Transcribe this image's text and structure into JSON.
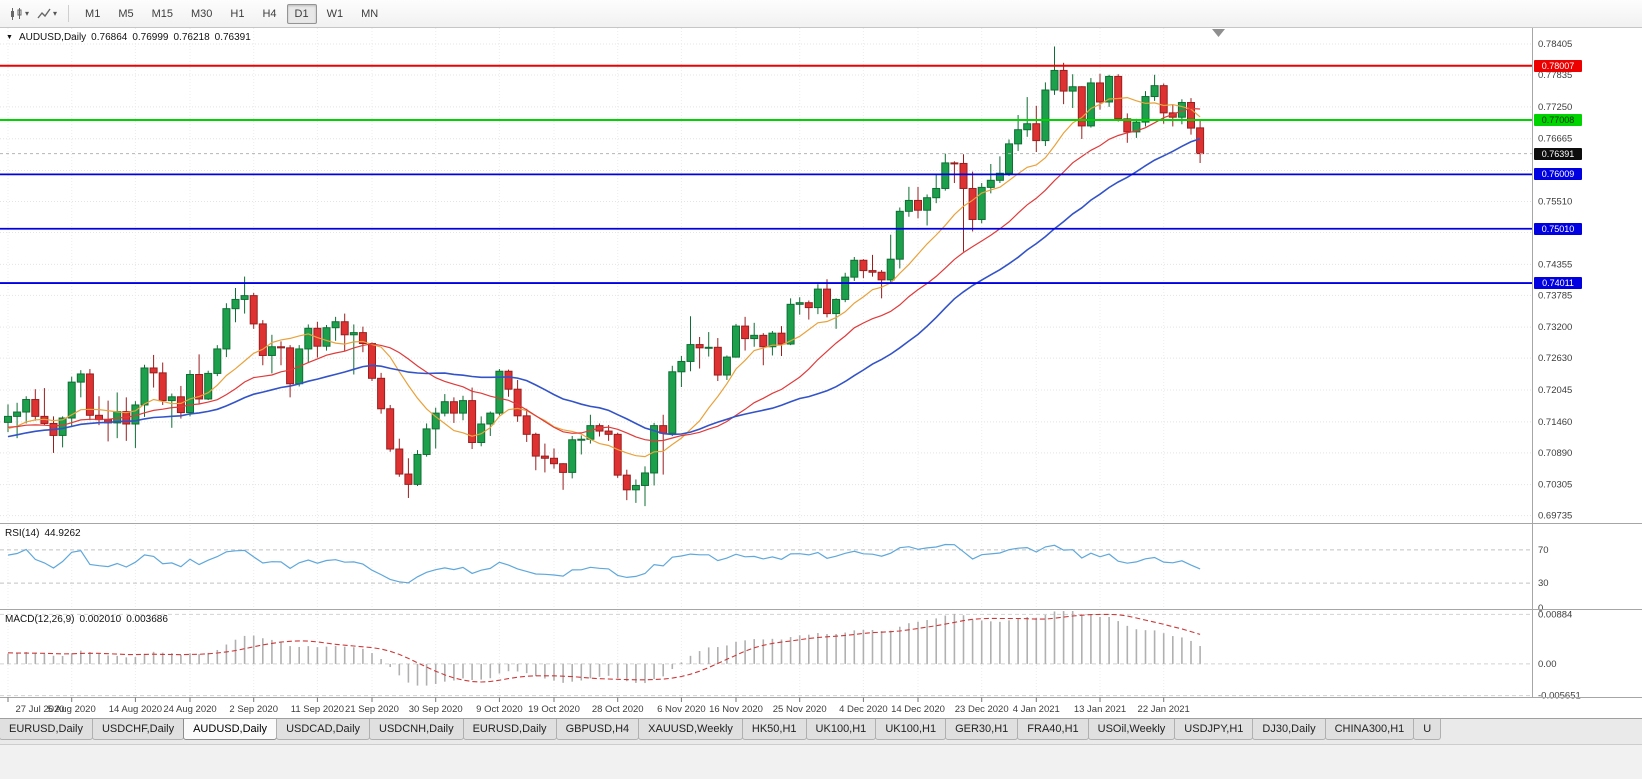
{
  "icons": {
    "dropdown": "▾",
    "title_marker": "▼"
  },
  "toolbar": {
    "timeframes": [
      "M1",
      "M5",
      "M15",
      "M30",
      "H1",
      "H4",
      "D1",
      "W1",
      "MN"
    ],
    "active_timeframe": "D1"
  },
  "chart": {
    "title": "AUDUSD,Daily",
    "open": "0.76864",
    "high": "0.76999",
    "low": "0.76218",
    "close": "0.76391"
  },
  "price_axis": {
    "labels": [
      "0.78405",
      "0.77835",
      "0.77250",
      "0.76665",
      "0.75510",
      "0.74355",
      "0.73785",
      "0.73200",
      "0.72630",
      "0.72045",
      "0.71460",
      "0.70890",
      "0.70305",
      "0.69735"
    ],
    "grid_prices": [
      0.78405,
      0.77835,
      0.7725,
      0.76665,
      0.7608,
      0.7551,
      0.7494,
      0.74355,
      0.73785,
      0.732,
      0.7263,
      0.72045,
      0.7146,
      0.7089,
      0.70305,
      0.69735
    ]
  },
  "price_lines": [
    {
      "label": "0.78007",
      "price": 0.78007,
      "color": "#EC0000",
      "text_color": "#ffffff",
      "width": 2
    },
    {
      "label": "0.77008",
      "price": 0.77008,
      "color": "#00D400",
      "text_color": "#003300",
      "width": 2
    },
    {
      "label": "0.76009",
      "price": 0.76009,
      "color": "#0000E0",
      "text_color": "#ffffff",
      "width": 1.8
    },
    {
      "label": "0.75010",
      "price": 0.7501,
      "color": "#0000E0",
      "text_color": "#ffffff",
      "width": 1.8
    },
    {
      "label": "0.74011",
      "price": 0.74011,
      "color": "#0000E0",
      "text_color": "#ffffff",
      "width": 1.8
    }
  ],
  "bid": {
    "label": "0.76391",
    "price": 0.76391,
    "bg": "#0d0d0d"
  },
  "indicators": {
    "rsi": {
      "name": "RSI(14)",
      "value": "44.9262",
      "levels": [
        70,
        30
      ],
      "axis_labels": [
        "70",
        "30",
        "0"
      ],
      "line_color": "#5FA8DC"
    },
    "macd": {
      "name": "MACD(12,26,9)",
      "main_value": "0.002010",
      "signal_value": "0.003686",
      "axis_labels": [
        "0.00884",
        "0.00",
        "-0.005651"
      ],
      "histogram_color": "#B0B0B0",
      "signal_color": "#CC3A3A"
    }
  },
  "x_axis": {
    "labels": [
      {
        "text": "27 Jul 2020",
        "index": 0
      },
      {
        "text": "5 Aug 2020",
        "index": 7
      },
      {
        "text": "14 Aug 2020",
        "index": 14
      },
      {
        "text": "24 Aug 2020",
        "index": 20
      },
      {
        "text": "2 Sep 2020",
        "index": 27
      },
      {
        "text": "11 Sep 2020",
        "index": 34
      },
      {
        "text": "21 Sep 2020",
        "index": 40
      },
      {
        "text": "30 Sep 2020",
        "index": 47
      },
      {
        "text": "9 Oct 2020",
        "index": 54
      },
      {
        "text": "19 Oct 2020",
        "index": 60
      },
      {
        "text": "28 Oct 2020",
        "index": 67
      },
      {
        "text": "6 Nov 2020",
        "index": 74
      },
      {
        "text": "16 Nov 2020",
        "index": 80
      },
      {
        "text": "25 Nov 2020",
        "index": 87
      },
      {
        "text": "4 Dec 2020",
        "index": 94
      },
      {
        "text": "14 Dec 2020",
        "index": 100
      },
      {
        "text": "23 Dec 2020",
        "index": 107
      },
      {
        "text": "4 Jan 2021",
        "index": 113
      },
      {
        "text": "13 Jan 2021",
        "index": 120
      },
      {
        "text": "22 Jan 2021",
        "index": 127
      }
    ]
  },
  "tabs": {
    "items": [
      "EURUSD,Daily",
      "USDCHF,Daily",
      "AUDUSD,Daily",
      "USDCAD,Daily",
      "USDCNH,Daily",
      "EURUSD,Daily",
      "GBPUSD,H4",
      "XAUUSD,Weekly",
      "HK50,H1",
      "UK100,H1",
      "UK100,H1",
      "GER30,H1",
      "FRA40,H1",
      "USOil,Weekly",
      "USDJPY,H1",
      "DJ30,Daily",
      "CHINA300,H1",
      "U"
    ],
    "active_index": 2
  },
  "chart_data": {
    "type": "candlestick",
    "symbol": "AUDUSD",
    "timeframe": "Daily",
    "ylim": [
      0.696,
      0.787
    ],
    "colors": {
      "bull": "#1CA04C",
      "bull_border": "#0F6E33",
      "bear": "#DE3232",
      "bear_border": "#9A1E1E"
    },
    "moving_averages": [
      {
        "period": 10,
        "color": "#E9A23B",
        "width": 1.2
      },
      {
        "period": 21,
        "color": "#E03A3A",
        "width": 1.2
      },
      {
        "period": 34,
        "color": "#3353C8",
        "width": 1.6
      }
    ],
    "prehistory_closes": [
      0.685,
      0.686,
      0.6855,
      0.6872,
      0.689,
      0.6885,
      0.6901,
      0.6915,
      0.6908,
      0.6922,
      0.6938,
      0.693,
      0.6945,
      0.696,
      0.6952,
      0.6968,
      0.698,
      0.6975,
      0.699,
      0.7005,
      0.6998,
      0.7012,
      0.7025,
      0.7018,
      0.7032,
      0.7045,
      0.7038,
      0.7052,
      0.7065,
      0.7058,
      0.7072,
      0.7085,
      0.7078,
      0.7092,
      0.7105,
      0.7098,
      0.711,
      0.7122,
      0.7115,
      0.7128,
      0.714,
      0.7132,
      0.7145,
      0.7155,
      0.7148,
      0.713,
      0.7118,
      0.7125,
      0.7138,
      0.715,
      0.7142,
      0.712,
      0.7108,
      0.7118,
      0.7132,
      0.7145,
      0.7138,
      0.7128,
      0.714,
      0.715
    ],
    "candles": [
      [
        0.7145,
        0.7178,
        0.7127,
        0.7156
      ],
      [
        0.7156,
        0.7181,
        0.7116,
        0.7164
      ],
      [
        0.7164,
        0.7193,
        0.7143,
        0.7187
      ],
      [
        0.7187,
        0.7206,
        0.7148,
        0.7156
      ],
      [
        0.7156,
        0.7208,
        0.714,
        0.7143
      ],
      [
        0.7143,
        0.7156,
        0.7089,
        0.7121
      ],
      [
        0.7121,
        0.7156,
        0.7099,
        0.7153
      ],
      [
        0.7153,
        0.7229,
        0.7137,
        0.7219
      ],
      [
        0.7219,
        0.7241,
        0.7191,
        0.7234
      ],
      [
        0.7234,
        0.7243,
        0.7149,
        0.7158
      ],
      [
        0.7158,
        0.7193,
        0.714,
        0.715
      ],
      [
        0.715,
        0.7185,
        0.711,
        0.7144
      ],
      [
        0.7144,
        0.72,
        0.7116,
        0.7165
      ],
      [
        0.7165,
        0.7191,
        0.7111,
        0.7142
      ],
      [
        0.7142,
        0.7184,
        0.7098,
        0.7177
      ],
      [
        0.7177,
        0.7251,
        0.7155,
        0.7245
      ],
      [
        0.7245,
        0.7269,
        0.7209,
        0.7236
      ],
      [
        0.7236,
        0.7255,
        0.7177,
        0.7185
      ],
      [
        0.7185,
        0.7198,
        0.7135,
        0.7192
      ],
      [
        0.7192,
        0.7212,
        0.7152,
        0.7163
      ],
      [
        0.7163,
        0.7241,
        0.7156,
        0.7233
      ],
      [
        0.7233,
        0.727,
        0.7179,
        0.7188
      ],
      [
        0.7188,
        0.724,
        0.7186,
        0.7235
      ],
      [
        0.7235,
        0.7287,
        0.723,
        0.728
      ],
      [
        0.728,
        0.7364,
        0.7265,
        0.7354
      ],
      [
        0.7354,
        0.7392,
        0.7329,
        0.7371
      ],
      [
        0.7371,
        0.7413,
        0.7345,
        0.7378
      ],
      [
        0.7378,
        0.7383,
        0.7317,
        0.7326
      ],
      [
        0.7326,
        0.7333,
        0.725,
        0.7268
      ],
      [
        0.7268,
        0.7306,
        0.7235,
        0.7284
      ],
      [
        0.7284,
        0.7294,
        0.725,
        0.7282
      ],
      [
        0.7282,
        0.7287,
        0.7191,
        0.7216
      ],
      [
        0.7216,
        0.7287,
        0.7211,
        0.728
      ],
      [
        0.728,
        0.7325,
        0.7255,
        0.7318
      ],
      [
        0.7318,
        0.733,
        0.7264,
        0.7285
      ],
      [
        0.7285,
        0.7324,
        0.7277,
        0.7319
      ],
      [
        0.7319,
        0.7339,
        0.7295,
        0.733
      ],
      [
        0.733,
        0.7345,
        0.7276,
        0.7306
      ],
      [
        0.7306,
        0.7325,
        0.7233,
        0.731
      ],
      [
        0.731,
        0.7321,
        0.7274,
        0.729
      ],
      [
        0.729,
        0.7292,
        0.7221,
        0.7226
      ],
      [
        0.7226,
        0.7236,
        0.7161,
        0.717
      ],
      [
        0.717,
        0.7177,
        0.7091,
        0.7096
      ],
      [
        0.7096,
        0.7115,
        0.7045,
        0.705
      ],
      [
        0.705,
        0.7079,
        0.7006,
        0.7031
      ],
      [
        0.7031,
        0.7094,
        0.7028,
        0.7086
      ],
      [
        0.7086,
        0.7143,
        0.7082,
        0.7133
      ],
      [
        0.7133,
        0.7172,
        0.7097,
        0.7162
      ],
      [
        0.7162,
        0.7197,
        0.7156,
        0.7183
      ],
      [
        0.7183,
        0.7191,
        0.7144,
        0.7162
      ],
      [
        0.7162,
        0.7194,
        0.7149,
        0.7185
      ],
      [
        0.7185,
        0.7209,
        0.7096,
        0.7108
      ],
      [
        0.7108,
        0.7156,
        0.7101,
        0.7142
      ],
      [
        0.7142,
        0.7165,
        0.712,
        0.7162
      ],
      [
        0.7162,
        0.7243,
        0.7158,
        0.7239
      ],
      [
        0.7239,
        0.7242,
        0.7192,
        0.7206
      ],
      [
        0.7206,
        0.7223,
        0.7146,
        0.7157
      ],
      [
        0.7157,
        0.717,
        0.7109,
        0.7123
      ],
      [
        0.7123,
        0.7126,
        0.7057,
        0.7083
      ],
      [
        0.7083,
        0.7106,
        0.7053,
        0.7079
      ],
      [
        0.7079,
        0.7097,
        0.706,
        0.7069
      ],
      [
        0.7069,
        0.707,
        0.7021,
        0.7053
      ],
      [
        0.7053,
        0.712,
        0.7042,
        0.7113
      ],
      [
        0.7113,
        0.7121,
        0.7086,
        0.7114
      ],
      [
        0.7114,
        0.7159,
        0.7106,
        0.7139
      ],
      [
        0.7139,
        0.7143,
        0.7119,
        0.7129
      ],
      [
        0.7129,
        0.714,
        0.7111,
        0.7123
      ],
      [
        0.7123,
        0.7126,
        0.7043,
        0.7048
      ],
      [
        0.7048,
        0.7058,
        0.7002,
        0.7021
      ],
      [
        0.7021,
        0.704,
        0.6997,
        0.7029
      ],
      [
        0.7029,
        0.7064,
        0.6991,
        0.7052
      ],
      [
        0.7052,
        0.7144,
        0.7029,
        0.7139
      ],
      [
        0.7139,
        0.7159,
        0.7049,
        0.7125
      ],
      [
        0.7125,
        0.7249,
        0.712,
        0.7238
      ],
      [
        0.7238,
        0.7267,
        0.721,
        0.7257
      ],
      [
        0.7257,
        0.734,
        0.7239,
        0.7288
      ],
      [
        0.7288,
        0.7302,
        0.7244,
        0.7282
      ],
      [
        0.7282,
        0.7311,
        0.7266,
        0.7283
      ],
      [
        0.7283,
        0.73,
        0.7221,
        0.7232
      ],
      [
        0.7232,
        0.7268,
        0.7223,
        0.7265
      ],
      [
        0.7265,
        0.7326,
        0.7264,
        0.7322
      ],
      [
        0.7322,
        0.7339,
        0.7277,
        0.7299
      ],
      [
        0.7299,
        0.7328,
        0.7284,
        0.7305
      ],
      [
        0.7305,
        0.7309,
        0.725,
        0.7284
      ],
      [
        0.7284,
        0.7313,
        0.7268,
        0.7309
      ],
      [
        0.7309,
        0.7322,
        0.7267,
        0.7289
      ],
      [
        0.7289,
        0.7373,
        0.7287,
        0.7362
      ],
      [
        0.7362,
        0.7375,
        0.7343,
        0.7365
      ],
      [
        0.7365,
        0.7369,
        0.7334,
        0.7356
      ],
      [
        0.7356,
        0.7399,
        0.7344,
        0.739
      ],
      [
        0.739,
        0.7408,
        0.7338,
        0.7345
      ],
      [
        0.7345,
        0.7373,
        0.7317,
        0.7371
      ],
      [
        0.7371,
        0.742,
        0.7366,
        0.7412
      ],
      [
        0.7412,
        0.7449,
        0.7405,
        0.7443
      ],
      [
        0.7443,
        0.7445,
        0.741,
        0.7424
      ],
      [
        0.7424,
        0.7453,
        0.7413,
        0.7421
      ],
      [
        0.7421,
        0.7425,
        0.7373,
        0.7407
      ],
      [
        0.7407,
        0.749,
        0.74,
        0.7445
      ],
      [
        0.7445,
        0.754,
        0.7428,
        0.7533
      ],
      [
        0.7533,
        0.7578,
        0.7523,
        0.7553
      ],
      [
        0.7553,
        0.7578,
        0.752,
        0.7535
      ],
      [
        0.7535,
        0.7564,
        0.7507,
        0.7558
      ],
      [
        0.7558,
        0.76,
        0.7548,
        0.7575
      ],
      [
        0.7575,
        0.7639,
        0.7571,
        0.7622
      ],
      [
        0.7622,
        0.7625,
        0.7585,
        0.7621
      ],
      [
        0.7621,
        0.7638,
        0.7459,
        0.7575
      ],
      [
        0.7575,
        0.7606,
        0.7496,
        0.7518
      ],
      [
        0.7518,
        0.7585,
        0.7511,
        0.7577
      ],
      [
        0.7577,
        0.762,
        0.7566,
        0.759
      ],
      [
        0.759,
        0.7634,
        0.7585,
        0.7603
      ],
      [
        0.7603,
        0.7665,
        0.7598,
        0.7657
      ],
      [
        0.7657,
        0.771,
        0.7644,
        0.7683
      ],
      [
        0.7683,
        0.7743,
        0.767,
        0.7694
      ],
      [
        0.7694,
        0.7727,
        0.7642,
        0.7663
      ],
      [
        0.7663,
        0.777,
        0.7653,
        0.7756
      ],
      [
        0.7756,
        0.7836,
        0.7747,
        0.7792
      ],
      [
        0.7792,
        0.7806,
        0.773,
        0.7754
      ],
      [
        0.7754,
        0.7785,
        0.7723,
        0.7762
      ],
      [
        0.7762,
        0.7763,
        0.7666,
        0.769
      ],
      [
        0.769,
        0.7778,
        0.7687,
        0.7769
      ],
      [
        0.7769,
        0.7786,
        0.772,
        0.7734
      ],
      [
        0.7734,
        0.7784,
        0.7725,
        0.7781
      ],
      [
        0.7781,
        0.7785,
        0.7698,
        0.7703
      ],
      [
        0.7703,
        0.7713,
        0.7659,
        0.7679
      ],
      [
        0.7679,
        0.7703,
        0.7668,
        0.7697
      ],
      [
        0.7697,
        0.7754,
        0.7689,
        0.7744
      ],
      [
        0.7744,
        0.7784,
        0.7736,
        0.7764
      ],
      [
        0.7764,
        0.7768,
        0.7694,
        0.7714
      ],
      [
        0.7714,
        0.7729,
        0.7689,
        0.7706
      ],
      [
        0.7706,
        0.7739,
        0.7693,
        0.7733
      ],
      [
        0.7733,
        0.7741,
        0.7674,
        0.7686
      ],
      [
        0.76864,
        0.76999,
        0.76218,
        0.76391
      ]
    ]
  }
}
